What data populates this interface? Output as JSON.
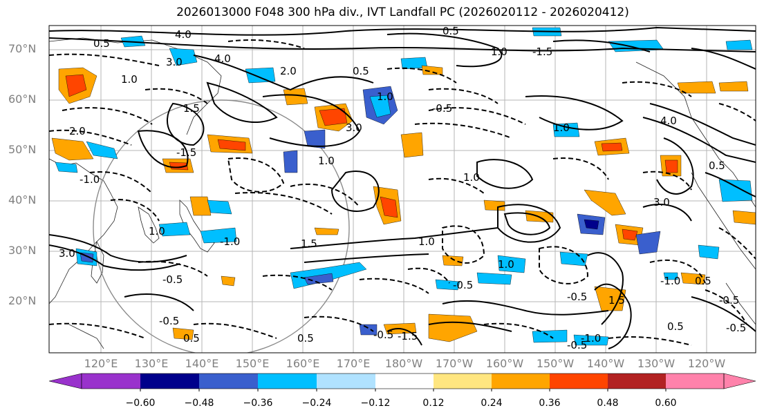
{
  "title": "2026013000 F048 300 hPa div., IVT Landfall PC (2026020112 - 2026020412)",
  "map": {
    "lat_labels": [
      "70°N",
      "60°N",
      "50°N",
      "40°N",
      "30°N",
      "20°N"
    ],
    "lon_labels": [
      "120°E",
      "130°E",
      "140°E",
      "150°E",
      "160°E",
      "170°E",
      "180°W",
      "170°W",
      "160°W",
      "150°W",
      "140°W",
      "130°W",
      "120°W"
    ],
    "contour_labels": [
      "4.0",
      "3.0",
      "2.0",
      "1.5",
      "1.0",
      "0.5",
      "4.0",
      "3.0",
      "-1.0",
      "-1.5",
      "-0.5",
      "1.0",
      "0.5",
      "1.0",
      "-1.0",
      "-0.5",
      "0.5",
      "1.0",
      "-1.5",
      "-0.5",
      "-0.5",
      "-0.5",
      "1.5",
      "2.0",
      "3.0",
      "1.0",
      "1.0",
      "0.5",
      "-0.5",
      "-1.0",
      "-1.0",
      "-0.5",
      "1.5",
      "0.5",
      "-0.5",
      "0.5",
      "-0.5",
      "-1.5",
      "1.0",
      "4.0",
      "0.5",
      "0.5",
      "3.0",
      "1.0",
      "1.0"
    ]
  },
  "colorbar": {
    "ticks": [
      "−0.60",
      "−0.48",
      "−0.36",
      "−0.24",
      "−0.12",
      "0.12",
      "0.24",
      "0.36",
      "0.48",
      "0.60"
    ],
    "colors": [
      "#9932cc",
      "#00008b",
      "#3a5fcd",
      "#00bfff",
      "#b0e2ff",
      "#ffffff",
      "#ffe680",
      "#ffa500",
      "#ff4500",
      "#b22222",
      "#ff82ab"
    ]
  }
}
